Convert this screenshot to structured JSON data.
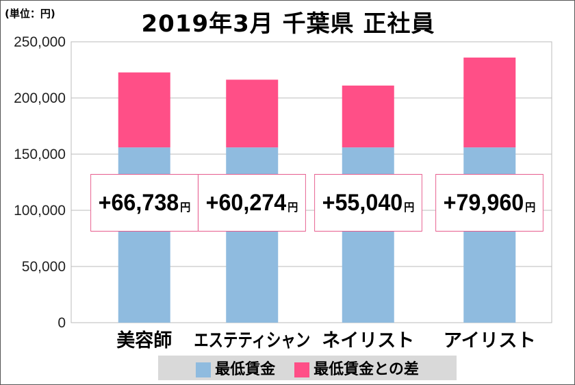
{
  "unit_label": "(単位：円)",
  "chart_data": {
    "type": "bar",
    "stacked": true,
    "title": "2019年3月 千葉県 正社員",
    "categories": [
      "美容師",
      "エステティシャン",
      "ネイリスト",
      "アイリスト"
    ],
    "series": [
      {
        "name": "最低賃金",
        "values": [
          156000,
          156000,
          156000,
          156000
        ],
        "color": "#8fbbdf"
      },
      {
        "name": "最低賃金との差",
        "values": [
          66738,
          60274,
          55040,
          79960
        ],
        "color": "#ff4f87"
      }
    ],
    "data_labels": [
      "+66,738",
      "+60,274",
      "+55,040",
      "+79,960"
    ],
    "data_label_unit": "円",
    "ylim": [
      0,
      250000
    ],
    "yticks": [
      "0",
      "50,000",
      "100,000",
      "150,000",
      "200,000",
      "250,000"
    ],
    "grid": true,
    "legend": "bottom"
  }
}
